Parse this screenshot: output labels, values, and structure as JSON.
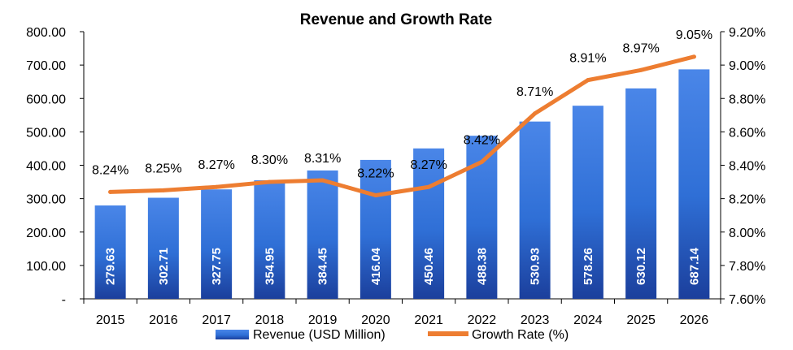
{
  "chart_data": {
    "type": "bar",
    "title": "Revenue and Growth Rate",
    "categories": [
      "2015",
      "2016",
      "2017",
      "2018",
      "2019",
      "2020",
      "2021",
      "2022",
      "2023",
      "2024",
      "2025",
      "2026"
    ],
    "series": [
      {
        "name": "Revenue (USD Million)",
        "type": "bar",
        "axis": "left",
        "values": [
          279.63,
          302.71,
          327.75,
          354.95,
          384.45,
          416.04,
          450.46,
          488.38,
          530.93,
          578.26,
          630.12,
          687.14
        ],
        "labels": [
          "279.63",
          "302.71",
          "327.75",
          "354.95",
          "384.45",
          "416.04",
          "450.46",
          "488.38",
          "530.93",
          "578.26",
          "630.12",
          "687.14"
        ]
      },
      {
        "name": "Growth Rate (%)",
        "type": "line",
        "axis": "right",
        "values": [
          8.24,
          8.25,
          8.27,
          8.3,
          8.31,
          8.22,
          8.27,
          8.42,
          8.71,
          8.91,
          8.97,
          9.05
        ],
        "labels": [
          "8.24%",
          "8.25%",
          "8.27%",
          "8.30%",
          "8.31%",
          "8.22%",
          "8.27%",
          "8.42%",
          "8.71%",
          "8.91%",
          "8.97%",
          "9.05%"
        ]
      }
    ],
    "y_left": {
      "min": 0,
      "max": 800,
      "ticks": [
        0,
        100,
        200,
        300,
        400,
        500,
        600,
        700,
        800
      ],
      "tick_labels": [
        "-",
        "100.00",
        "200.00",
        "300.00",
        "400.00",
        "500.00",
        "600.00",
        "700.00",
        "800.00"
      ]
    },
    "y_right": {
      "min": 7.6,
      "max": 9.2,
      "ticks": [
        7.6,
        7.8,
        8.0,
        8.2,
        8.4,
        8.6,
        8.8,
        9.0,
        9.2
      ],
      "tick_labels": [
        "7.60%",
        "7.80%",
        "8.00%",
        "8.20%",
        "8.40%",
        "8.60%",
        "8.80%",
        "9.00%",
        "9.20%"
      ]
    },
    "grid": false,
    "legend_position": "bottom",
    "colors": {
      "bar": "#2F6FD6",
      "bar_dark": "#1B3F9C",
      "bar_light": "#4A86E8",
      "line": "#ED7D31",
      "axis": "#000000"
    }
  }
}
